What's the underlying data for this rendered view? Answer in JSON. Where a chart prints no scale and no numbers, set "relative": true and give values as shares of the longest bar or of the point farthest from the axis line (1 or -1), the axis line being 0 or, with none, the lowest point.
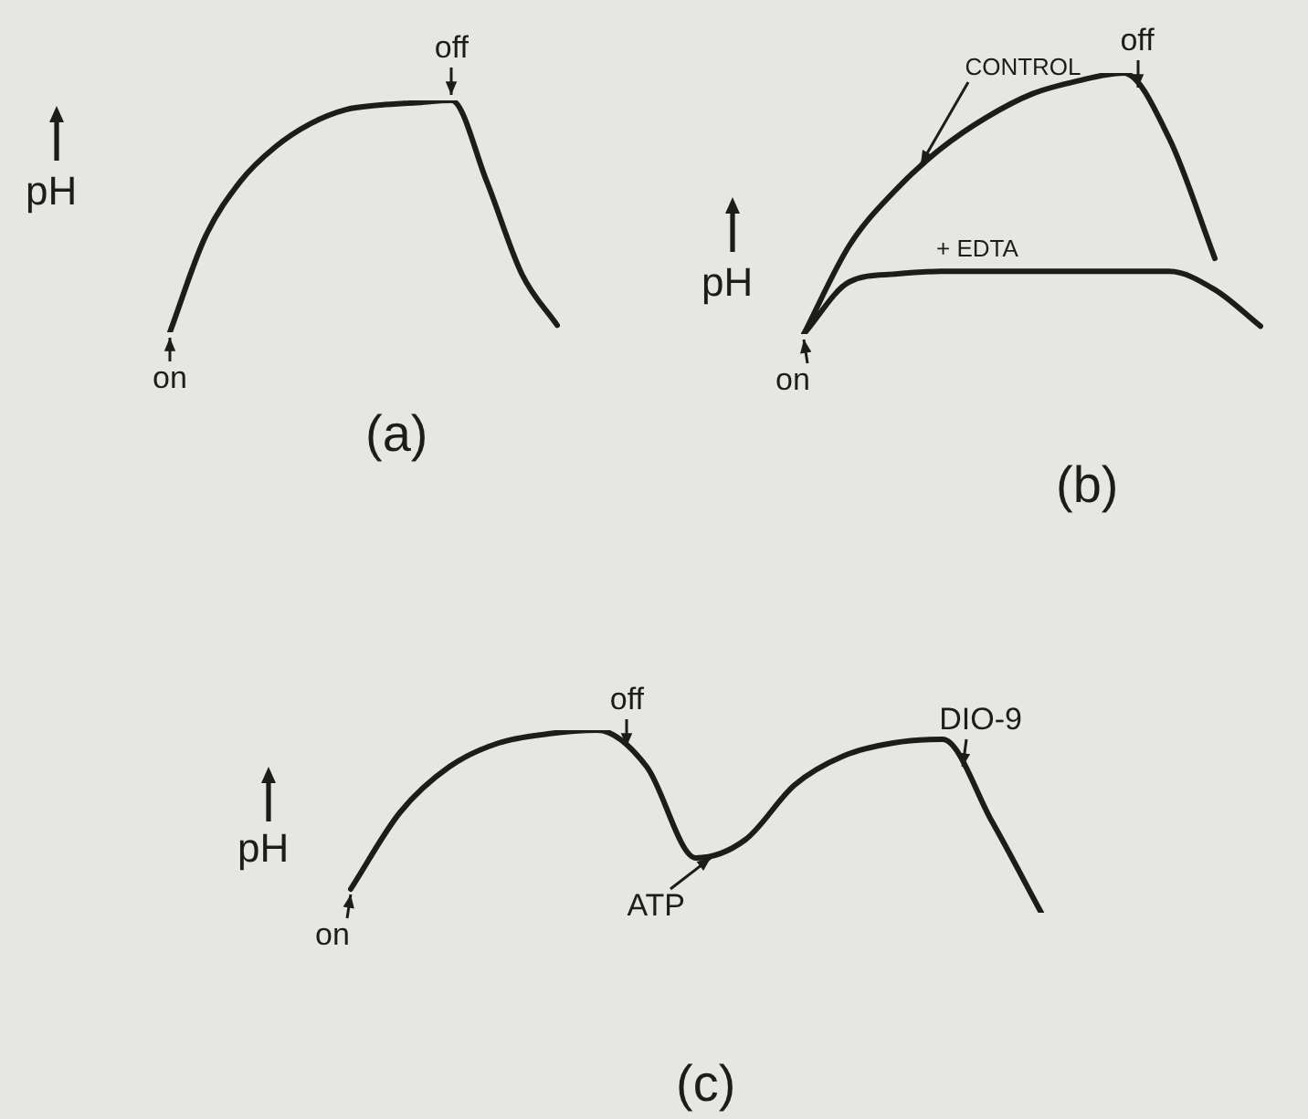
{
  "chart_data": [
    {
      "type": "line",
      "title": "(a)",
      "ylabel": "pH",
      "relative": true,
      "marker": "none",
      "categories": [
        null,
        null,
        null,
        null,
        null,
        null,
        null,
        null,
        null,
        null,
        null,
        null
      ],
      "series": [
        {
          "color": "#1c1c1c",
          "values": [
            0,
            0.41,
            0.65,
            0.8,
            0.9,
            0.96,
            0.98,
            0.99,
            1,
            0.65,
            0.25,
            0.03
          ]
        }
      ],
      "annotations": [
        "off",
        "on"
      ]
    },
    {
      "type": "line",
      "title": "(b)",
      "ylabel": "pH",
      "relative": true,
      "marker": "none",
      "categories": [
        null,
        null,
        null,
        null,
        null,
        null,
        null,
        null,
        null,
        null,
        null
      ],
      "series": [
        {
          "name": "CONTROL",
          "color": "#1c1c1c",
          "values": [
            0,
            0.34,
            0.55,
            0.71,
            0.83,
            0.92,
            0.97,
            1,
            0.75,
            0.29,
            null
          ]
        },
        {
          "name": "+ EDTA",
          "color": "#1c1c1c",
          "values": [
            0,
            0.2,
            0.23,
            0.24,
            0.24,
            0.24,
            0.24,
            0.24,
            0.24,
            0.17,
            0.03
          ]
        }
      ],
      "annotations": [
        "off",
        "on"
      ]
    },
    {
      "type": "line",
      "title": "(c)",
      "ylabel": "pH",
      "relative": true,
      "marker": "none",
      "categories": [
        null,
        null,
        null,
        null,
        null,
        null,
        null,
        null,
        null,
        null,
        null,
        null,
        null,
        null,
        null
      ],
      "series": [
        {
          "color": "#1c1c1c",
          "values": [
            0.13,
            0.55,
            0.8,
            0.93,
            0.98,
            1,
            0.8,
            0.3,
            0.4,
            0.7,
            0.86,
            0.93,
            0.95,
            0.5,
            0
          ]
        }
      ],
      "annotations": [
        "off",
        "ATP",
        "DIO-9",
        "on"
      ]
    }
  ]
}
